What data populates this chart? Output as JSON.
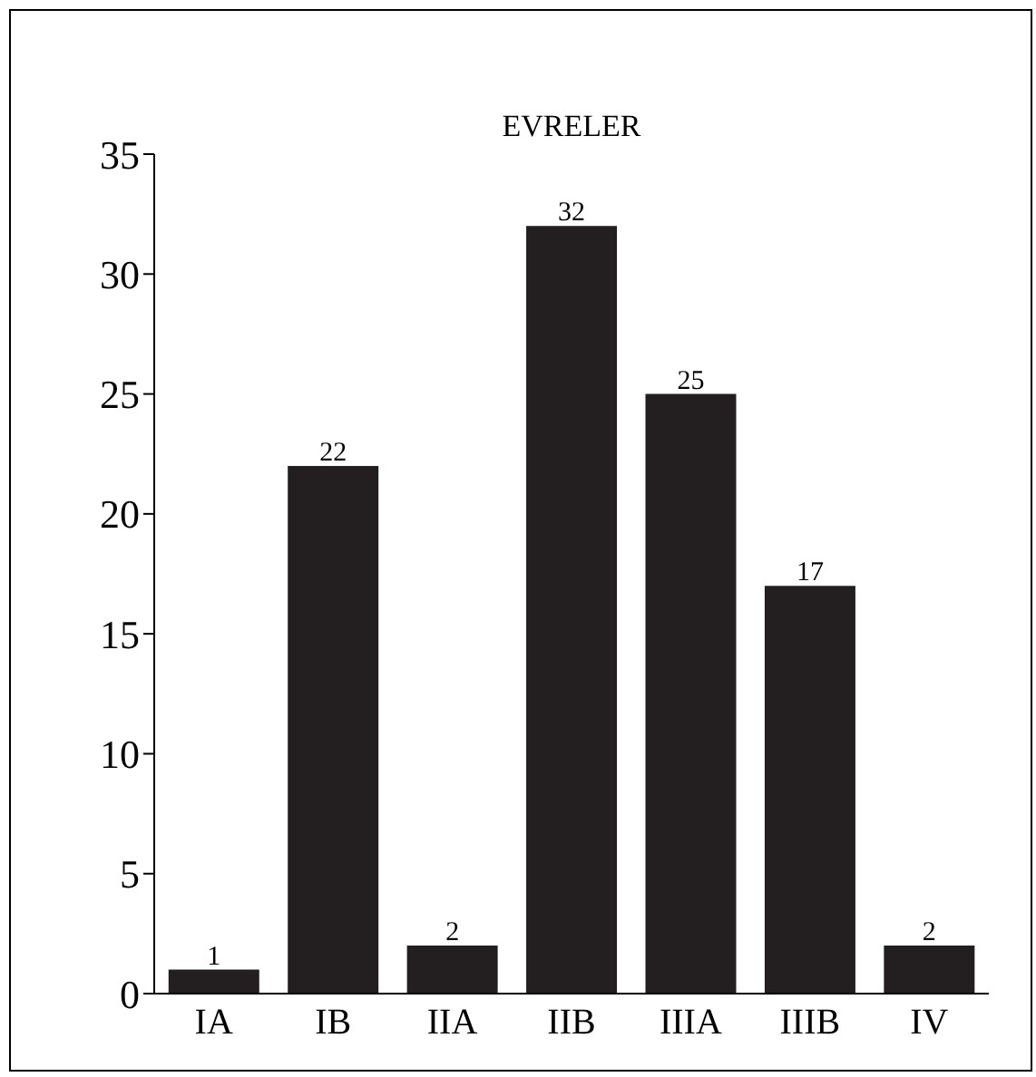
{
  "chart_data": {
    "type": "bar",
    "title": "EVRELER",
    "categories": [
      "IA",
      "IB",
      "IIA",
      "IIB",
      "IIIA",
      "IIIB",
      "IV"
    ],
    "values": [
      1,
      22,
      2,
      32,
      25,
      17,
      2
    ],
    "color": "#231f20",
    "ylim": [
      0,
      35
    ],
    "yticks": [
      0,
      5,
      10,
      15,
      20,
      25,
      30,
      35
    ],
    "grid": false,
    "data_labels": true
  }
}
